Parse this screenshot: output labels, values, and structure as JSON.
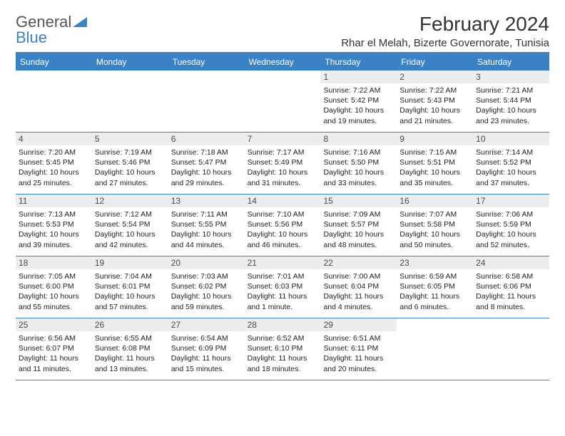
{
  "logo": {
    "text1": "General",
    "text2": "Blue"
  },
  "title": "February 2024",
  "location": "Rhar el Melah, Bizerte Governorate, Tunisia",
  "colors": {
    "accent": "#3b82c4",
    "daynum_bg": "#eceeee",
    "text": "#222222",
    "header_text": "#333333",
    "logo_gray": "#555555"
  },
  "day_names": [
    "Sunday",
    "Monday",
    "Tuesday",
    "Wednesday",
    "Thursday",
    "Friday",
    "Saturday"
  ],
  "weeks": [
    [
      {
        "blank": true
      },
      {
        "blank": true
      },
      {
        "blank": true
      },
      {
        "blank": true
      },
      {
        "num": "1",
        "sunrise": "7:22 AM",
        "sunset": "5:42 PM",
        "daylight": "10 hours and 19 minutes."
      },
      {
        "num": "2",
        "sunrise": "7:22 AM",
        "sunset": "5:43 PM",
        "daylight": "10 hours and 21 minutes."
      },
      {
        "num": "3",
        "sunrise": "7:21 AM",
        "sunset": "5:44 PM",
        "daylight": "10 hours and 23 minutes."
      }
    ],
    [
      {
        "num": "4",
        "sunrise": "7:20 AM",
        "sunset": "5:45 PM",
        "daylight": "10 hours and 25 minutes."
      },
      {
        "num": "5",
        "sunrise": "7:19 AM",
        "sunset": "5:46 PM",
        "daylight": "10 hours and 27 minutes."
      },
      {
        "num": "6",
        "sunrise": "7:18 AM",
        "sunset": "5:47 PM",
        "daylight": "10 hours and 29 minutes."
      },
      {
        "num": "7",
        "sunrise": "7:17 AM",
        "sunset": "5:49 PM",
        "daylight": "10 hours and 31 minutes."
      },
      {
        "num": "8",
        "sunrise": "7:16 AM",
        "sunset": "5:50 PM",
        "daylight": "10 hours and 33 minutes."
      },
      {
        "num": "9",
        "sunrise": "7:15 AM",
        "sunset": "5:51 PM",
        "daylight": "10 hours and 35 minutes."
      },
      {
        "num": "10",
        "sunrise": "7:14 AM",
        "sunset": "5:52 PM",
        "daylight": "10 hours and 37 minutes."
      }
    ],
    [
      {
        "num": "11",
        "sunrise": "7:13 AM",
        "sunset": "5:53 PM",
        "daylight": "10 hours and 39 minutes."
      },
      {
        "num": "12",
        "sunrise": "7:12 AM",
        "sunset": "5:54 PM",
        "daylight": "10 hours and 42 minutes."
      },
      {
        "num": "13",
        "sunrise": "7:11 AM",
        "sunset": "5:55 PM",
        "daylight": "10 hours and 44 minutes."
      },
      {
        "num": "14",
        "sunrise": "7:10 AM",
        "sunset": "5:56 PM",
        "daylight": "10 hours and 46 minutes."
      },
      {
        "num": "15",
        "sunrise": "7:09 AM",
        "sunset": "5:57 PM",
        "daylight": "10 hours and 48 minutes."
      },
      {
        "num": "16",
        "sunrise": "7:07 AM",
        "sunset": "5:58 PM",
        "daylight": "10 hours and 50 minutes."
      },
      {
        "num": "17",
        "sunrise": "7:06 AM",
        "sunset": "5:59 PM",
        "daylight": "10 hours and 52 minutes."
      }
    ],
    [
      {
        "num": "18",
        "sunrise": "7:05 AM",
        "sunset": "6:00 PM",
        "daylight": "10 hours and 55 minutes."
      },
      {
        "num": "19",
        "sunrise": "7:04 AM",
        "sunset": "6:01 PM",
        "daylight": "10 hours and 57 minutes."
      },
      {
        "num": "20",
        "sunrise": "7:03 AM",
        "sunset": "6:02 PM",
        "daylight": "10 hours and 59 minutes."
      },
      {
        "num": "21",
        "sunrise": "7:01 AM",
        "sunset": "6:03 PM",
        "daylight": "11 hours and 1 minute."
      },
      {
        "num": "22",
        "sunrise": "7:00 AM",
        "sunset": "6:04 PM",
        "daylight": "11 hours and 4 minutes."
      },
      {
        "num": "23",
        "sunrise": "6:59 AM",
        "sunset": "6:05 PM",
        "daylight": "11 hours and 6 minutes."
      },
      {
        "num": "24",
        "sunrise": "6:58 AM",
        "sunset": "6:06 PM",
        "daylight": "11 hours and 8 minutes."
      }
    ],
    [
      {
        "num": "25",
        "sunrise": "6:56 AM",
        "sunset": "6:07 PM",
        "daylight": "11 hours and 11 minutes."
      },
      {
        "num": "26",
        "sunrise": "6:55 AM",
        "sunset": "6:08 PM",
        "daylight": "11 hours and 13 minutes."
      },
      {
        "num": "27",
        "sunrise": "6:54 AM",
        "sunset": "6:09 PM",
        "daylight": "11 hours and 15 minutes."
      },
      {
        "num": "28",
        "sunrise": "6:52 AM",
        "sunset": "6:10 PM",
        "daylight": "11 hours and 18 minutes."
      },
      {
        "num": "29",
        "sunrise": "6:51 AM",
        "sunset": "6:11 PM",
        "daylight": "11 hours and 20 minutes."
      },
      {
        "blank": true
      },
      {
        "blank": true
      }
    ]
  ],
  "labels": {
    "sunrise": "Sunrise:",
    "sunset": "Sunset:",
    "daylight": "Daylight:"
  }
}
